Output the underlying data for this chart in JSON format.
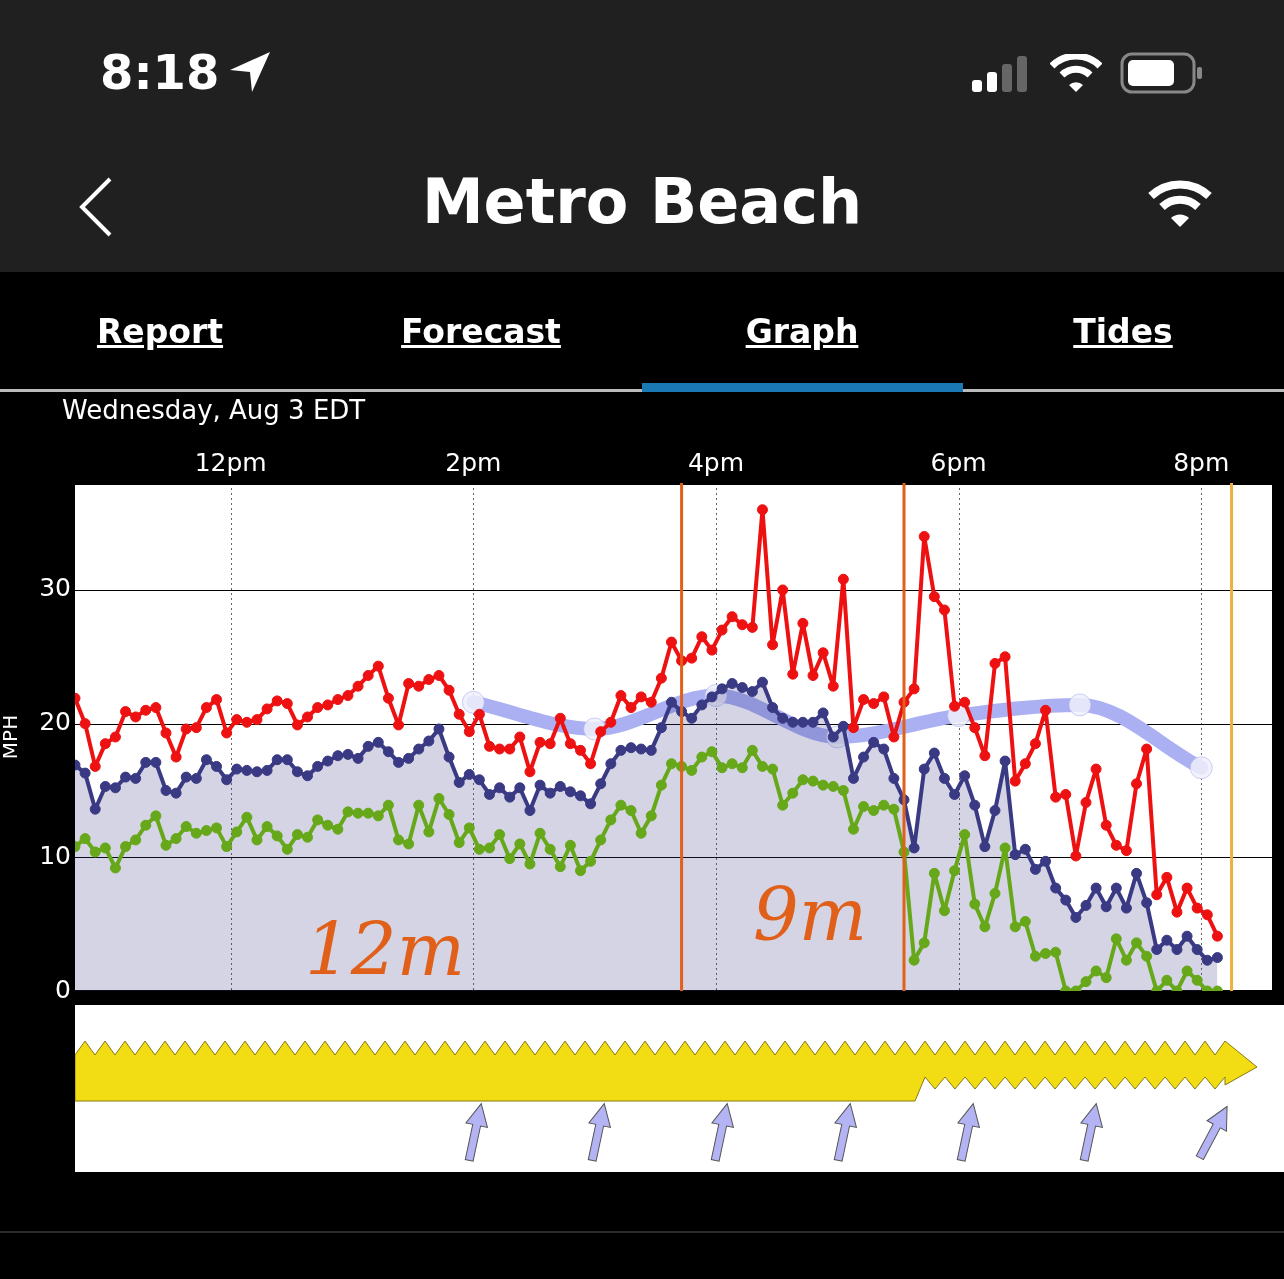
{
  "chart_data": {
    "type": "line",
    "title": "Metro Beach",
    "subtitle": "Wednesday, Aug 3 EDT",
    "ylabel": "MPH",
    "annotations": [
      "8:18",
      "Report",
      "Forecast",
      "Graph",
      "Tides",
      "12m",
      "9m"
    ],
    "x": [
      "--08-03T10:43",
      "--08-03T10:48",
      "--08-03T10:53",
      "--08-03T10:58",
      "--08-03T11:03",
      "--08-03T11:08",
      "--08-03T11:13",
      "--08-03T11:18",
      "--08-03T11:23",
      "--08-03T11:28",
      "--08-03T11:33",
      "--08-03T11:38",
      "--08-03T11:43",
      "--08-03T11:48",
      "--08-03T11:53",
      "--08-03T11:58",
      "--08-03T12:03",
      "--08-03T12:08",
      "--08-03T12:13",
      "--08-03T12:18",
      "--08-03T12:23",
      "--08-03T12:28",
      "--08-03T12:33",
      "--08-03T12:38",
      "--08-03T12:43",
      "--08-03T12:48",
      "--08-03T12:53",
      "--08-03T12:58",
      "--08-03T13:03",
      "--08-03T13:08",
      "--08-03T13:13",
      "--08-03T13:18",
      "--08-03T13:23",
      "--08-03T13:28",
      "--08-03T13:33",
      "--08-03T13:38",
      "--08-03T13:43",
      "--08-03T13:48",
      "--08-03T13:53",
      "--08-03T13:58",
      "--08-03T14:03",
      "--08-03T14:08",
      "--08-03T14:13",
      "--08-03T14:18",
      "--08-03T14:23",
      "--08-03T14:28",
      "--08-03T14:33",
      "--08-03T14:38",
      "--08-03T14:43",
      "--08-03T14:48",
      "--08-03T14:53",
      "--08-03T14:58",
      "--08-03T15:03",
      "--08-03T15:08",
      "--08-03T15:13",
      "--08-03T15:18",
      "--08-03T15:23",
      "--08-03T15:28",
      "--08-03T15:33",
      "--08-03T15:38",
      "--08-03T15:43",
      "--08-03T15:48",
      "--08-03T15:53",
      "--08-03T15:58",
      "--08-03T16:03",
      "--08-03T16:08",
      "--08-03T16:13",
      "--08-03T16:18",
      "--08-03T16:23",
      "--08-03T16:28",
      "--08-03T16:33",
      "--08-03T16:38",
      "--08-03T16:43",
      "--08-03T16:48",
      "--08-03T16:53",
      "--08-03T16:58",
      "--08-03T17:03",
      "--08-03T17:08",
      "--08-03T17:13",
      "--08-03T17:18",
      "--08-03T17:23",
      "--08-03T17:28",
      "--08-03T17:33",
      "--08-03T17:38",
      "--08-03T17:43",
      "--08-03T17:48",
      "--08-03T17:53",
      "--08-03T17:58",
      "--08-03T18:03",
      "--08-03T18:08",
      "--08-03T18:13",
      "--08-03T18:18",
      "--08-03T18:23",
      "--08-03T18:28",
      "--08-03T18:33",
      "--08-03T18:38",
      "--08-03T18:43",
      "--08-03T18:48",
      "--08-03T18:53",
      "--08-03T18:58",
      "--08-03T19:03",
      "--08-03T19:08",
      "--08-03T19:13",
      "--08-03T19:18",
      "--08-03T19:23",
      "--08-03T19:28",
      "--08-03T19:33",
      "--08-03T19:38",
      "--08-03T19:43",
      "--08-03T19:48",
      "--08-03T19:53",
      "--08-03T19:58",
      "--08-03T20:03",
      "--08-03T20:08"
    ],
    "series": [
      {
        "type": "line",
        "color": "#aab0f2",
        "x": [
          "--08-03T14:00",
          "--08-03T15:00",
          "--08-03T16:00",
          "--08-03T17:00",
          "--08-03T18:00",
          "--08-03T19:00",
          "--08-03T20:00"
        ],
        "values": [
          21.6,
          19.6,
          22.1,
          19,
          20.6,
          21.4,
          16.7
        ]
      },
      {
        "type": "area",
        "color": "#3a3a84",
        "values": [
          16.9,
          16.3,
          13.6,
          15.3,
          15.2,
          16,
          15.9,
          17.1,
          17.1,
          15,
          14.8,
          16,
          15.9,
          17.3,
          16.8,
          15.8,
          16.6,
          16.5,
          16.4,
          16.5,
          17.3,
          17.3,
          16.4,
          16.1,
          16.8,
          17.2,
          17.6,
          17.7,
          17.4,
          18.3,
          18.6,
          17.9,
          17.1,
          17.4,
          18.1,
          18.7,
          19.6,
          17.5,
          15.6,
          16.2,
          15.8,
          14.7,
          15.2,
          14.5,
          15.2,
          13.5,
          15.4,
          14.8,
          15.3,
          14.9,
          14.6,
          14,
          15.5,
          17,
          18,
          18.2,
          18.1,
          18,
          19.7,
          21.6,
          20.9,
          20.4,
          21.4,
          22,
          22.6,
          23,
          22.7,
          22.4,
          23.1,
          21.2,
          20.4,
          20.1,
          20.1,
          20.1,
          20.8,
          19,
          19.8,
          15.9,
          17.5,
          18.6,
          18.1,
          15.9,
          14.3,
          10.7,
          16.6,
          17.8,
          15.9,
          14.7,
          16.1,
          13.9,
          10.8,
          13.5,
          17.2,
          10.2,
          10.6,
          9.1,
          9.7,
          7.7,
          6.8,
          5.5,
          6.4,
          7.7,
          6.3,
          7.7,
          6.2,
          8.8,
          6.6,
          3.1,
          3.8,
          3.1,
          4.1,
          3.1,
          2.3,
          2.5
        ]
      },
      {
        "type": "line",
        "color": "#ee1111",
        "values": [
          21.9,
          20,
          16.8,
          18.5,
          19,
          20.9,
          20.5,
          21,
          21.2,
          19.3,
          17.5,
          19.6,
          19.7,
          21.2,
          21.8,
          19.3,
          20.3,
          20.1,
          20.3,
          21.1,
          21.7,
          21.5,
          19.9,
          20.5,
          21.2,
          21.4,
          21.8,
          22.1,
          22.8,
          23.6,
          24.3,
          21.9,
          19.9,
          23,
          22.8,
          23.3,
          23.6,
          22.5,
          20.7,
          19.4,
          20.7,
          18.3,
          18.1,
          18.1,
          19,
          16.4,
          18.6,
          18.5,
          20.4,
          18.5,
          18,
          17,
          19.4,
          20.1,
          22.1,
          21.2,
          22,
          21.6,
          23.4,
          26.1,
          24.7,
          24.9,
          26.5,
          25.5,
          27,
          28,
          27.4,
          27.2,
          36,
          25.9,
          30,
          23.7,
          27.5,
          23.6,
          25.3,
          22.8,
          30.8,
          19.7,
          21.8,
          21.5,
          22,
          19,
          21.6,
          22.6,
          34,
          29.5,
          28.5,
          21.3,
          21.6,
          19.7,
          17.6,
          24.5,
          25,
          15.7,
          17,
          18.5,
          21,
          14.5,
          14.7,
          10.1,
          14.1,
          16.6,
          12.4,
          10.9,
          10.5,
          15.5,
          18.1,
          7.2,
          8.5,
          5.9,
          7.7,
          6.2,
          5.7,
          4.1
        ]
      },
      {
        "type": "line",
        "color": "#66a81a",
        "values": [
          10.8,
          11.4,
          10.4,
          10.7,
          9.2,
          10.8,
          11.3,
          12.4,
          13.1,
          10.9,
          11.4,
          12.3,
          11.8,
          12,
          12.2,
          10.8,
          11.9,
          13,
          11.3,
          12.3,
          11.6,
          10.6,
          11.7,
          11.5,
          12.8,
          12.4,
          12.1,
          13.4,
          13.3,
          13.3,
          13.1,
          13.9,
          11.3,
          11,
          13.9,
          11.9,
          14.4,
          13.2,
          11.1,
          12.2,
          10.6,
          10.7,
          11.7,
          9.9,
          11,
          9.5,
          11.8,
          10.6,
          9.3,
          10.9,
          9,
          9.7,
          11.3,
          12.8,
          13.9,
          13.5,
          11.8,
          13.1,
          15.4,
          17,
          16.8,
          16.5,
          17.5,
          17.9,
          16.7,
          17,
          16.7,
          18,
          16.8,
          16.6,
          13.9,
          14.8,
          15.8,
          15.7,
          15.4,
          15.3,
          15,
          12.1,
          13.8,
          13.5,
          13.9,
          13.6,
          10.4,
          2.3,
          3.6,
          8.8,
          6,
          9,
          11.7,
          6.5,
          4.8,
          7.3,
          10.7,
          4.8,
          5.2,
          2.6,
          2.8,
          2.9,
          0,
          0,
          0.7,
          1.5,
          1,
          3.9,
          2.3,
          3.6,
          2.6,
          0,
          0.8,
          0,
          1.5,
          0.8,
          0,
          0
        ]
      }
    ],
    "xlim": [
      "--08-03T10:43",
      "--08-03T20:35"
    ],
    "xticks": [
      {
        "value": "--08-03T12:00",
        "label": "12pm"
      },
      {
        "value": "--08-03T14:00",
        "label": "2pm"
      },
      {
        "value": "--08-03T16:00",
        "label": "4pm"
      },
      {
        "value": "--08-03T18:00",
        "label": "6pm"
      },
      {
        "value": "--08-03T20:00",
        "label": "8pm"
      }
    ],
    "ylim": [
      0,
      38
    ],
    "yticks": [
      0,
      10,
      20,
      30
    ],
    "ref_lines": [
      {
        "axis": "x",
        "value": "--08-03T15:43",
        "color": "#e0601a"
      },
      {
        "axis": "x",
        "value": "--08-03T17:33",
        "color": "#e0601a"
      },
      {
        "axis": "x",
        "value": "--08-03T20:15",
        "color": "#f0b040"
      }
    ],
    "grid": true,
    "marker": "circle",
    "legend": false
  }
}
